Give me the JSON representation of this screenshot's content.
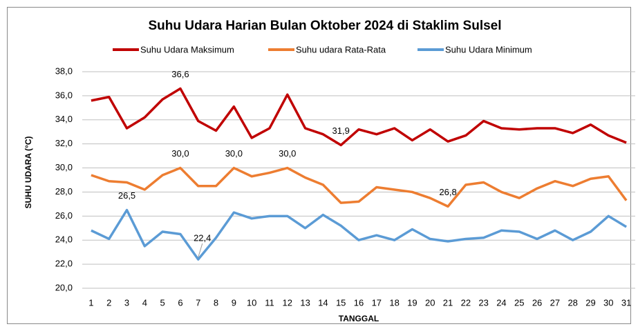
{
  "chart_data": {
    "type": "line",
    "title": "Suhu Udara Harian Bulan Oktober 2024 di Staklim Sulsel",
    "x_label": "TANGGAL",
    "y_label": "SUHU UDARA (°C)",
    "categories": [
      "1",
      "2",
      "3",
      "4",
      "5",
      "6",
      "7",
      "8",
      "9",
      "10",
      "11",
      "12",
      "13",
      "14",
      "15",
      "16",
      "17",
      "18",
      "19",
      "20",
      "21",
      "22",
      "23",
      "24",
      "25",
      "26",
      "27",
      "28",
      "29",
      "30",
      "31"
    ],
    "series": [
      {
        "name": "Suhu Udara Maksimum",
        "color": "#c00000",
        "values": [
          35.6,
          35.9,
          33.3,
          34.2,
          35.7,
          36.6,
          33.9,
          33.1,
          35.1,
          32.5,
          33.3,
          36.1,
          33.3,
          32.8,
          31.9,
          33.2,
          32.8,
          33.3,
          32.3,
          33.2,
          32.2,
          32.7,
          33.9,
          33.3,
          33.2,
          33.3,
          33.3,
          32.9,
          33.6,
          32.7,
          32.1
        ],
        "value_labels": [
          null,
          null,
          null,
          null,
          null,
          "36,6",
          null,
          null,
          null,
          null,
          null,
          null,
          null,
          null,
          "31,9",
          null,
          null,
          null,
          null,
          null,
          null,
          null,
          null,
          null,
          null,
          null,
          null,
          null,
          null,
          null,
          null
        ]
      },
      {
        "name": "Suhu udara Rata-Rata",
        "color": "#ed7d31",
        "values": [
          29.4,
          28.9,
          28.8,
          28.2,
          29.4,
          30.0,
          28.5,
          28.5,
          30.0,
          29.3,
          29.6,
          30.0,
          29.2,
          28.6,
          27.1,
          27.2,
          28.4,
          28.2,
          28.0,
          27.5,
          26.8,
          28.6,
          28.8,
          28.0,
          27.5,
          28.3,
          28.9,
          28.5,
          29.1,
          29.3,
          27.3
        ],
        "value_labels": [
          null,
          null,
          null,
          null,
          null,
          "30,0",
          null,
          null,
          "30,0",
          null,
          null,
          "30,0",
          null,
          null,
          null,
          null,
          null,
          null,
          null,
          null,
          "26,8",
          null,
          null,
          null,
          null,
          null,
          null,
          null,
          null,
          null,
          null
        ]
      },
      {
        "name": "Suhu Udara Minimum",
        "color": "#5b9bd5",
        "values": [
          24.8,
          24.1,
          26.5,
          23.5,
          24.7,
          24.5,
          22.4,
          24.2,
          26.3,
          25.8,
          26.0,
          26.0,
          25.0,
          26.1,
          25.2,
          24.0,
          24.4,
          24.0,
          24.9,
          24.1,
          23.9,
          24.1,
          24.2,
          24.8,
          24.7,
          24.1,
          24.8,
          24.0,
          24.7,
          26.0,
          25.1
        ],
        "value_labels": [
          null,
          null,
          "26,5",
          null,
          null,
          null,
          "22,4",
          null,
          null,
          null,
          null,
          null,
          null,
          null,
          null,
          null,
          null,
          null,
          null,
          null,
          null,
          null,
          null,
          null,
          null,
          null,
          null,
          null,
          null,
          null,
          null
        ]
      }
    ],
    "ylim": [
      20,
      38
    ],
    "yticks": [
      {
        "value": 20,
        "label": "20,0"
      },
      {
        "value": 22,
        "label": "22,0"
      },
      {
        "value": 24,
        "label": "24,0"
      },
      {
        "value": 26,
        "label": "26,0"
      },
      {
        "value": 28,
        "label": "28,0"
      },
      {
        "value": 30,
        "label": "30,0"
      },
      {
        "value": 32,
        "label": "32,0"
      },
      {
        "value": 34,
        "label": "34,0"
      },
      {
        "value": 36,
        "label": "36,0"
      },
      {
        "value": 38,
        "label": "38,0"
      }
    ],
    "grid": true,
    "legend": "top"
  }
}
